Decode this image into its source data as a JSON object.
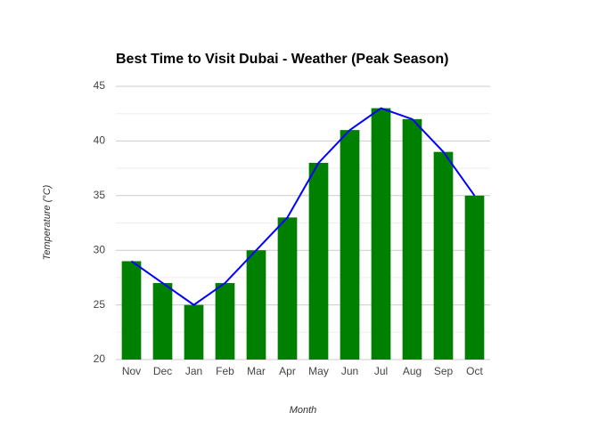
{
  "chart_data": {
    "type": "combo",
    "title": "Best Time to Visit Dubai - Weather (Peak Season)",
    "x_label": "Month",
    "y_label": "Temperature (°C)",
    "categories": [
      "Nov",
      "Dec",
      "Jan",
      "Feb",
      "Mar",
      "Apr",
      "May",
      "Jun",
      "Jul",
      "Aug",
      "Sep",
      "Oct"
    ],
    "series": [
      {
        "type": "bar",
        "color": "#008000",
        "values": [
          29,
          27,
          25,
          27,
          30,
          33,
          38,
          41,
          43,
          42,
          39,
          35
        ]
      },
      {
        "type": "line",
        "color": "#0000ff",
        "values": [
          29,
          27,
          25,
          27,
          30,
          33,
          38,
          41,
          43,
          42,
          39,
          35
        ]
      }
    ],
    "ylim": [
      20,
      45
    ],
    "yticks": [
      20,
      25,
      30,
      35,
      40,
      45
    ],
    "minor_yticks": [
      22.5,
      27.5,
      32.5,
      37.5,
      42.5
    ],
    "grid": true
  }
}
